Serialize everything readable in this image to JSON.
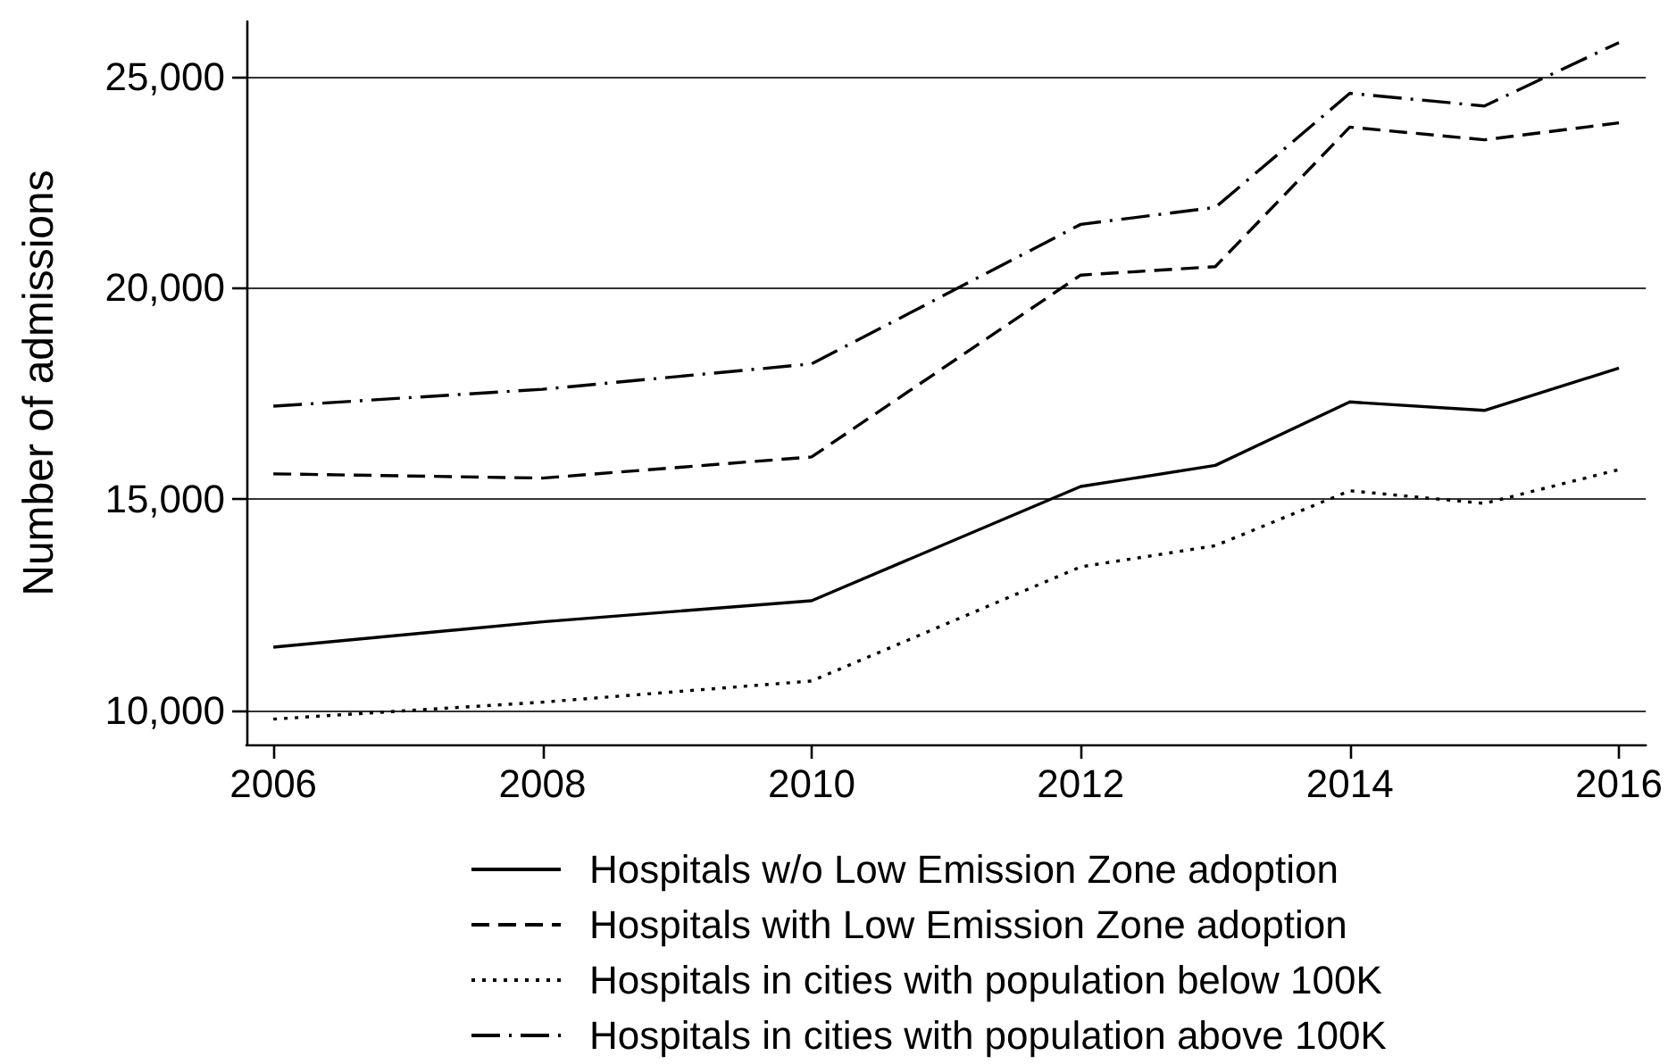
{
  "chart_data": {
    "type": "line",
    "ylabel": "Number of admissions",
    "x": [
      2006,
      2008,
      2010,
      2012,
      2013,
      2014,
      2015,
      2016
    ],
    "series": [
      {
        "name": "Hospitals w/o Low Emission Zone adoption",
        "color": "#000000",
        "line_style": "solid",
        "values": [
          11500,
          12100,
          12600,
          15300,
          15800,
          17300,
          17100,
          18100
        ]
      },
      {
        "name": "Hospitals with Low Emission Zone adoption",
        "color": "#000000",
        "line_style": "dashed",
        "values": [
          15600,
          15500,
          16000,
          20300,
          20500,
          23800,
          23500,
          23900
        ]
      },
      {
        "name": "Hospitals in cities with population below 100K",
        "color": "#000000",
        "line_style": "dotted",
        "values": [
          9800,
          10200,
          10700,
          13400,
          13900,
          15200,
          14900,
          15700
        ]
      },
      {
        "name": "Hospitals in cities with population above 100K",
        "color": "#000000",
        "line_style": "dashdot",
        "values": [
          17200,
          17600,
          18200,
          21500,
          21900,
          24600,
          24300,
          25800
        ]
      }
    ],
    "xlim": [
      2005.8,
      2016.2
    ],
    "xticks": [
      2006,
      2008,
      2010,
      2012,
      2014,
      2016
    ],
    "ylim": [
      9200,
      26300
    ],
    "yticks": [
      {
        "value": 10000,
        "label": "10,000"
      },
      {
        "value": 15000,
        "label": "15,000"
      },
      {
        "value": 20000,
        "label": "20,000"
      },
      {
        "value": 25000,
        "label": "25,000"
      }
    ],
    "grid": "y",
    "legend": "bottom",
    "marker": "none"
  }
}
